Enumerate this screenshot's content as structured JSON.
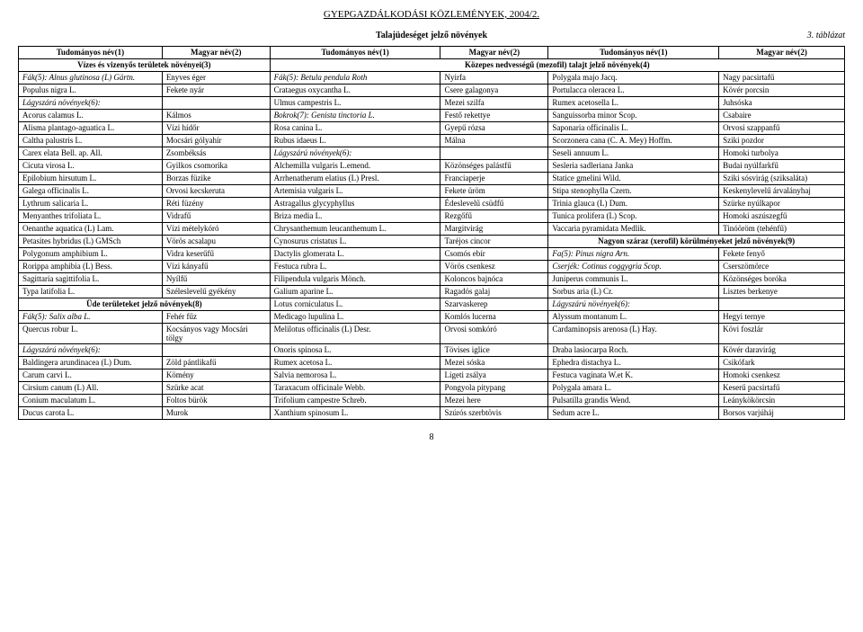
{
  "journal": "GYEPGAZDÁLKODÁSI KÖZLEMÉNYEK, 2004/2.",
  "table_number": "3. táblázat",
  "table_title": "Talajüdeséget jelző növények",
  "page": "8",
  "headers": [
    "Tudományos név(1)",
    "Magyar név(2)",
    "Tudományos név(1)",
    "Magyar név(2)",
    "Tudományos név(1)",
    "Magyar név(2)"
  ],
  "sections": {
    "s1": "Vízes és vizenyős területek növényei(3)",
    "s2": "Közepes nedvességű (mezofil) talajt jelző növények(4)",
    "s3": "Üde területeket jelző növények(8)",
    "s4": "Nagyon száraz (xerofil) körülményeket jelző növények(9)"
  },
  "rows": [
    [
      "Fák(5): Alnus glutinosa (L) Gärtn.",
      "Enyves éger",
      "Fák(5):   Betula pendula Roth",
      "Nyirfa",
      "Polygala majo Jacq.",
      "Nagy pacsirtafű"
    ],
    [
      "         Populus nigra L.",
      "Fekete nyár",
      "            Crataegus oxycantha L.",
      "Csere galagonya",
      "Portulacca oleracea L.",
      "Kövér porcsin"
    ],
    [
      "Lágyszárú növények(6):",
      "",
      "            Ulmus campestris L.",
      "Mezei szilfa",
      "Rumex acetosella L.",
      "Juhsóska"
    ],
    [
      "Acorus calamus L.",
      "Kálmos",
      "Bokrok(7): Genista tinctoria L.",
      "Festő rekettye",
      "Sanguissorba minor Scop.",
      "Csabaire"
    ],
    [
      "Alisma plantago-aguatica L.",
      "Vízi hídőr",
      "            Rosa canina L.",
      "Gyepű rózsa",
      "Saponaria officinalis L.",
      "Orvosi szappanfű"
    ],
    [
      "Caltha palustris L.",
      "Mocsári gólyahír",
      "            Rubus idaeus L.",
      "Málna",
      "Scorzonera cana (C. A. Mey) Hoffm.",
      "Sziki pozdor"
    ],
    [
      "Carex elata Bell. ap. All.",
      "Zsombéksás",
      "Lágyszárú növények(6):",
      "",
      "Seseli annuum L.",
      "Homoki turbolya"
    ],
    [
      "Cicuta virosa L.",
      "Gyilkos csomorika",
      "Alchemilla vulgaris L.emend.",
      "Közönséges palástfű",
      "Sesleria sadleriana Janka",
      "Budai nyúlfarkfű"
    ],
    [
      "Epilobium hirsutum L.",
      "Borzas füzike",
      "Arrhenatherum elatius (L) Presl.",
      "Franciaperje",
      "Statice gmelini Wild.",
      "Sziki sósvirág (sziksaláta)"
    ],
    [
      "Galega officinalis L.",
      "Orvosi kecskeruta",
      "Artemisia vulgaris L.",
      "Fekete üröm",
      "Stipa stenophylla Czern.",
      "Keskenylevelű árvalányhaj"
    ],
    [
      "Lythrum salicaria L.",
      "Réti füzény",
      "Astragallus glycyphyllus",
      "Édeslevelű csüdfű",
      "Trinia glauca (L) Dum.",
      "Szürke nyúlkapor"
    ],
    [
      "Menyanthes trifoliata L.",
      "Vidrafű",
      "Briza media L.",
      "Rezgőfű",
      "Tunica prolifera (L) Scop.",
      "Homoki aszúszegfű"
    ],
    [
      "Oenanthe aquatica (L) Lam.",
      "Vízi mételykóró",
      "Chrysanthemum leucanthemum L.",
      "Margitvirág",
      "Vaccaria pyramidata Medlik.",
      "Tinóöröm (tehénfű)"
    ],
    [
      "Petasites hybridus (L) GMSch",
      "Vörös acsalapu",
      "Cynosurus cristatus L.",
      "Taréjos cincor",
      "",
      ""
    ],
    [
      "Polygonum amphibium L.",
      "Vidra keserűfű",
      "Dactylis glomerata L.",
      "Csomós ebír",
      "Fa(5):    Pinus nigra Arn.",
      "Fekete fenyő"
    ],
    [
      "Rorippa amphibia (L) Bess.",
      "Vízi kányafű",
      "Festuca rubra L.",
      "Vörös csenkesz",
      "Cserjék:  Cotinus coggygria Scop.",
      "Cserszömörce"
    ],
    [
      "Sagittaria sagittifolia L.",
      "Nyílfű",
      "Filipendula vulgaris Mönch.",
      "Koloncos bajnóca",
      "            Juniperus communis L.",
      "Közönséges boróka"
    ],
    [
      "Typa latifolia L.",
      "Széleslevelű gyékény",
      "Galium aparine L.",
      "Ragadós galaj",
      "            Sorbus aria (L) Cr.",
      "Lisztes berkenye"
    ],
    [
      "",
      "",
      "Lotus corniculatus L.",
      "Szarvaskerep",
      "Lágyszárú növények(6):",
      ""
    ],
    [
      "Fák(5): Salix alba L.",
      "Fehér fűz",
      "Medicago lupulina L.",
      "Komlós lucerna",
      "Alyssum montanum L.",
      "Hegyi ternye"
    ],
    [
      "         Quercus robur L.",
      "Kocsányos vagy Mocsári tölgy",
      "Melilotus officinalis (L) Desr.",
      "Orvosi somkóró",
      "Cardaminopsis arenosa (L) Hay.",
      "Kövi foszlár"
    ],
    [
      "Lágyszárú növények(6):",
      "",
      "Onoris spinosa L.",
      "Tövises iglice",
      "Draba lasiocarpa Roch.",
      "Kövér daravirág"
    ],
    [
      "Baldingera arundinacea (L) Dum.",
      "Zöld pántlikafű",
      "Rumex acetosa L.",
      "Mezei sóska",
      "Ephedra distachya L.",
      "Csikófark"
    ],
    [
      "Carum carvi L.",
      "Kömény",
      "Salvia nemorosa L.",
      "Ligeti zsálya",
      "Festuca vaginata W.et K.",
      "Homoki csenkesz"
    ],
    [
      "Cirsium canum (L) All.",
      "Szürke acat",
      "Taraxacum officinale Webb.",
      "Pongyola pitypang",
      "Polygala amara L.",
      "Keserű pacsirtafű"
    ],
    [
      "Conium maculatum L.",
      "Foltos bürök",
      "Trifolium campestre Schreb.",
      "Mezei here",
      "Pulsatilla grandis Wend.",
      "Leánykökörcsin"
    ],
    [
      "Ducus carota L.",
      "Murok",
      "Xanthium spinosum L.",
      "Szúrós szerbtövis",
      "Sedum acre L.",
      "Borsos varjúháj"
    ]
  ]
}
